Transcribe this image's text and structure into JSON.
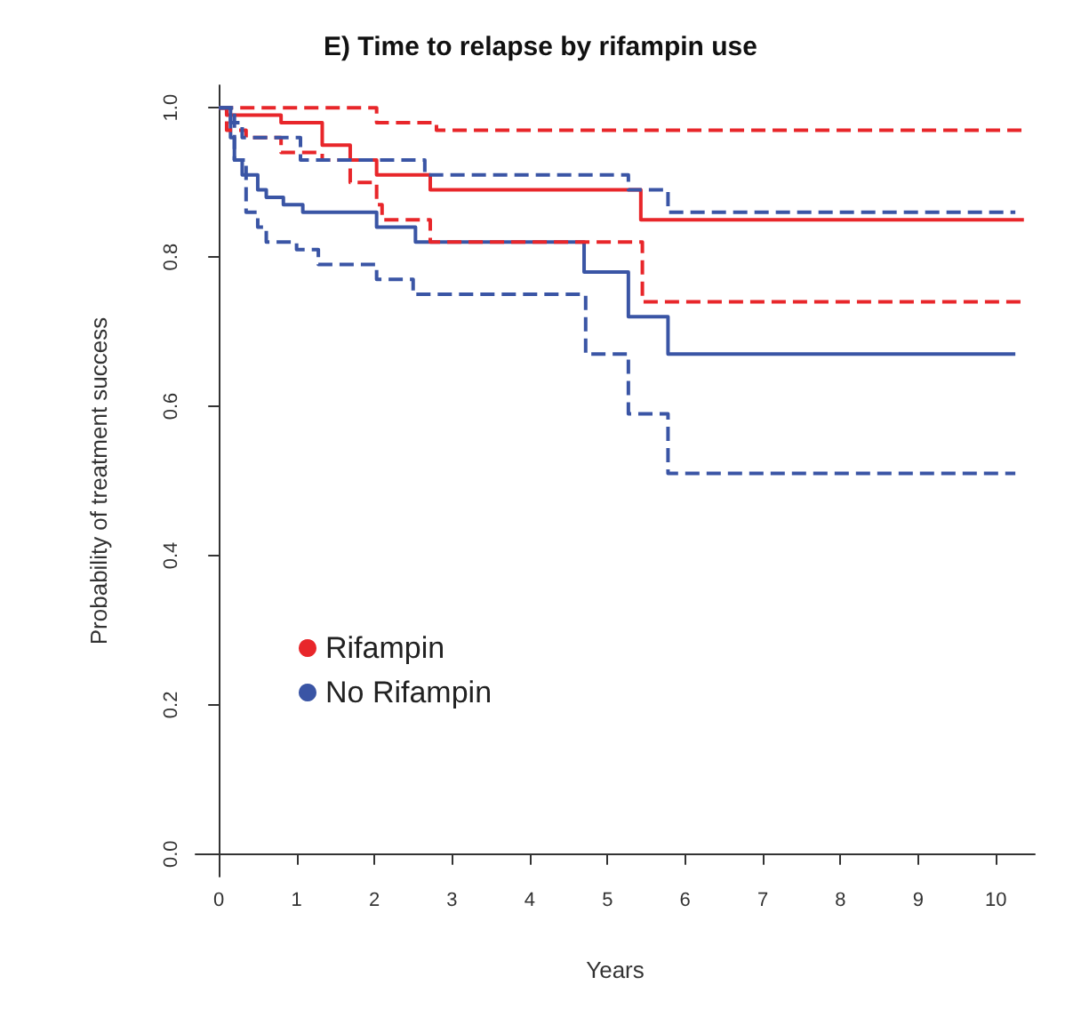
{
  "chart_data": {
    "type": "step",
    "title": "E) Time to relapse by rifampin use",
    "xlabel": "Years",
    "ylabel": "Probability of treatment success",
    "xlim": [
      -0.3,
      10.5
    ],
    "xticks": [
      0,
      1,
      2,
      3,
      4,
      5,
      6,
      7,
      8,
      9,
      10
    ],
    "ylim": [
      -0.03,
      1.03
    ],
    "yticks": [
      {
        "value": 0,
        "label": "0.0"
      },
      0.2,
      0.4,
      0.6,
      0.8,
      {
        "value": 1,
        "label": "1.0"
      }
    ],
    "grid": false,
    "legend": "bottom left",
    "series": [
      {
        "name": "Rifampin",
        "color": "#e8262a",
        "line_style": "solid",
        "x": [
          0,
          0.1,
          0.8,
          1.33,
          1.69,
          2.03,
          2.72,
          5.43,
          10.36
        ],
        "values": [
          1,
          0.99,
          0.98,
          0.95,
          0.93,
          0.91,
          0.89,
          0.85,
          0.85
        ]
      },
      {
        "name": "No Rifampin",
        "color": "#3a55a5",
        "line_style": "solid",
        "x": [
          0,
          0.15,
          0.2,
          0.3,
          0.5,
          0.61,
          0.83,
          1.08,
          2.03,
          2.53,
          4.7,
          5.27,
          5.78,
          10.25
        ],
        "values": [
          1,
          0.96,
          0.93,
          0.91,
          0.89,
          0.88,
          0.87,
          0.86,
          0.84,
          0.82,
          0.78,
          0.72,
          0.67,
          0.67
        ]
      },
      {
        "color": "#e8262a",
        "line_style": "dashed",
        "x": [
          0,
          2.03,
          2.8,
          10.36
        ],
        "values": [
          1,
          0.98,
          0.97,
          0.97
        ]
      },
      {
        "color": "#e8262a",
        "line_style": "dashed",
        "x": [
          0,
          0.1,
          0.35,
          0.8,
          1.33,
          1.69,
          2.03,
          2.1,
          2.72,
          5.45,
          10.36
        ],
        "values": [
          1,
          0.97,
          0.96,
          0.94,
          0.93,
          0.9,
          0.87,
          0.85,
          0.82,
          0.74,
          0.74
        ]
      },
      {
        "color": "#3a55a5",
        "line_style": "dashed",
        "x": [
          0,
          0.15,
          0.3,
          1.05,
          1.69,
          2.65,
          5.27,
          5.78,
          10.25
        ],
        "values": [
          1,
          0.98,
          0.96,
          0.93,
          0.93,
          0.91,
          0.89,
          0.86,
          0.86
        ]
      },
      {
        "color": "#3a55a5",
        "line_style": "dashed",
        "x": [
          0,
          0.2,
          0.35,
          0.5,
          0.61,
          1.0,
          1.28,
          2.03,
          2.5,
          4.72,
          5.27,
          5.78,
          10.25
        ],
        "values": [
          1,
          0.93,
          0.86,
          0.84,
          0.82,
          0.81,
          0.79,
          0.77,
          0.75,
          0.67,
          0.59,
          0.51,
          0.51
        ]
      }
    ]
  }
}
